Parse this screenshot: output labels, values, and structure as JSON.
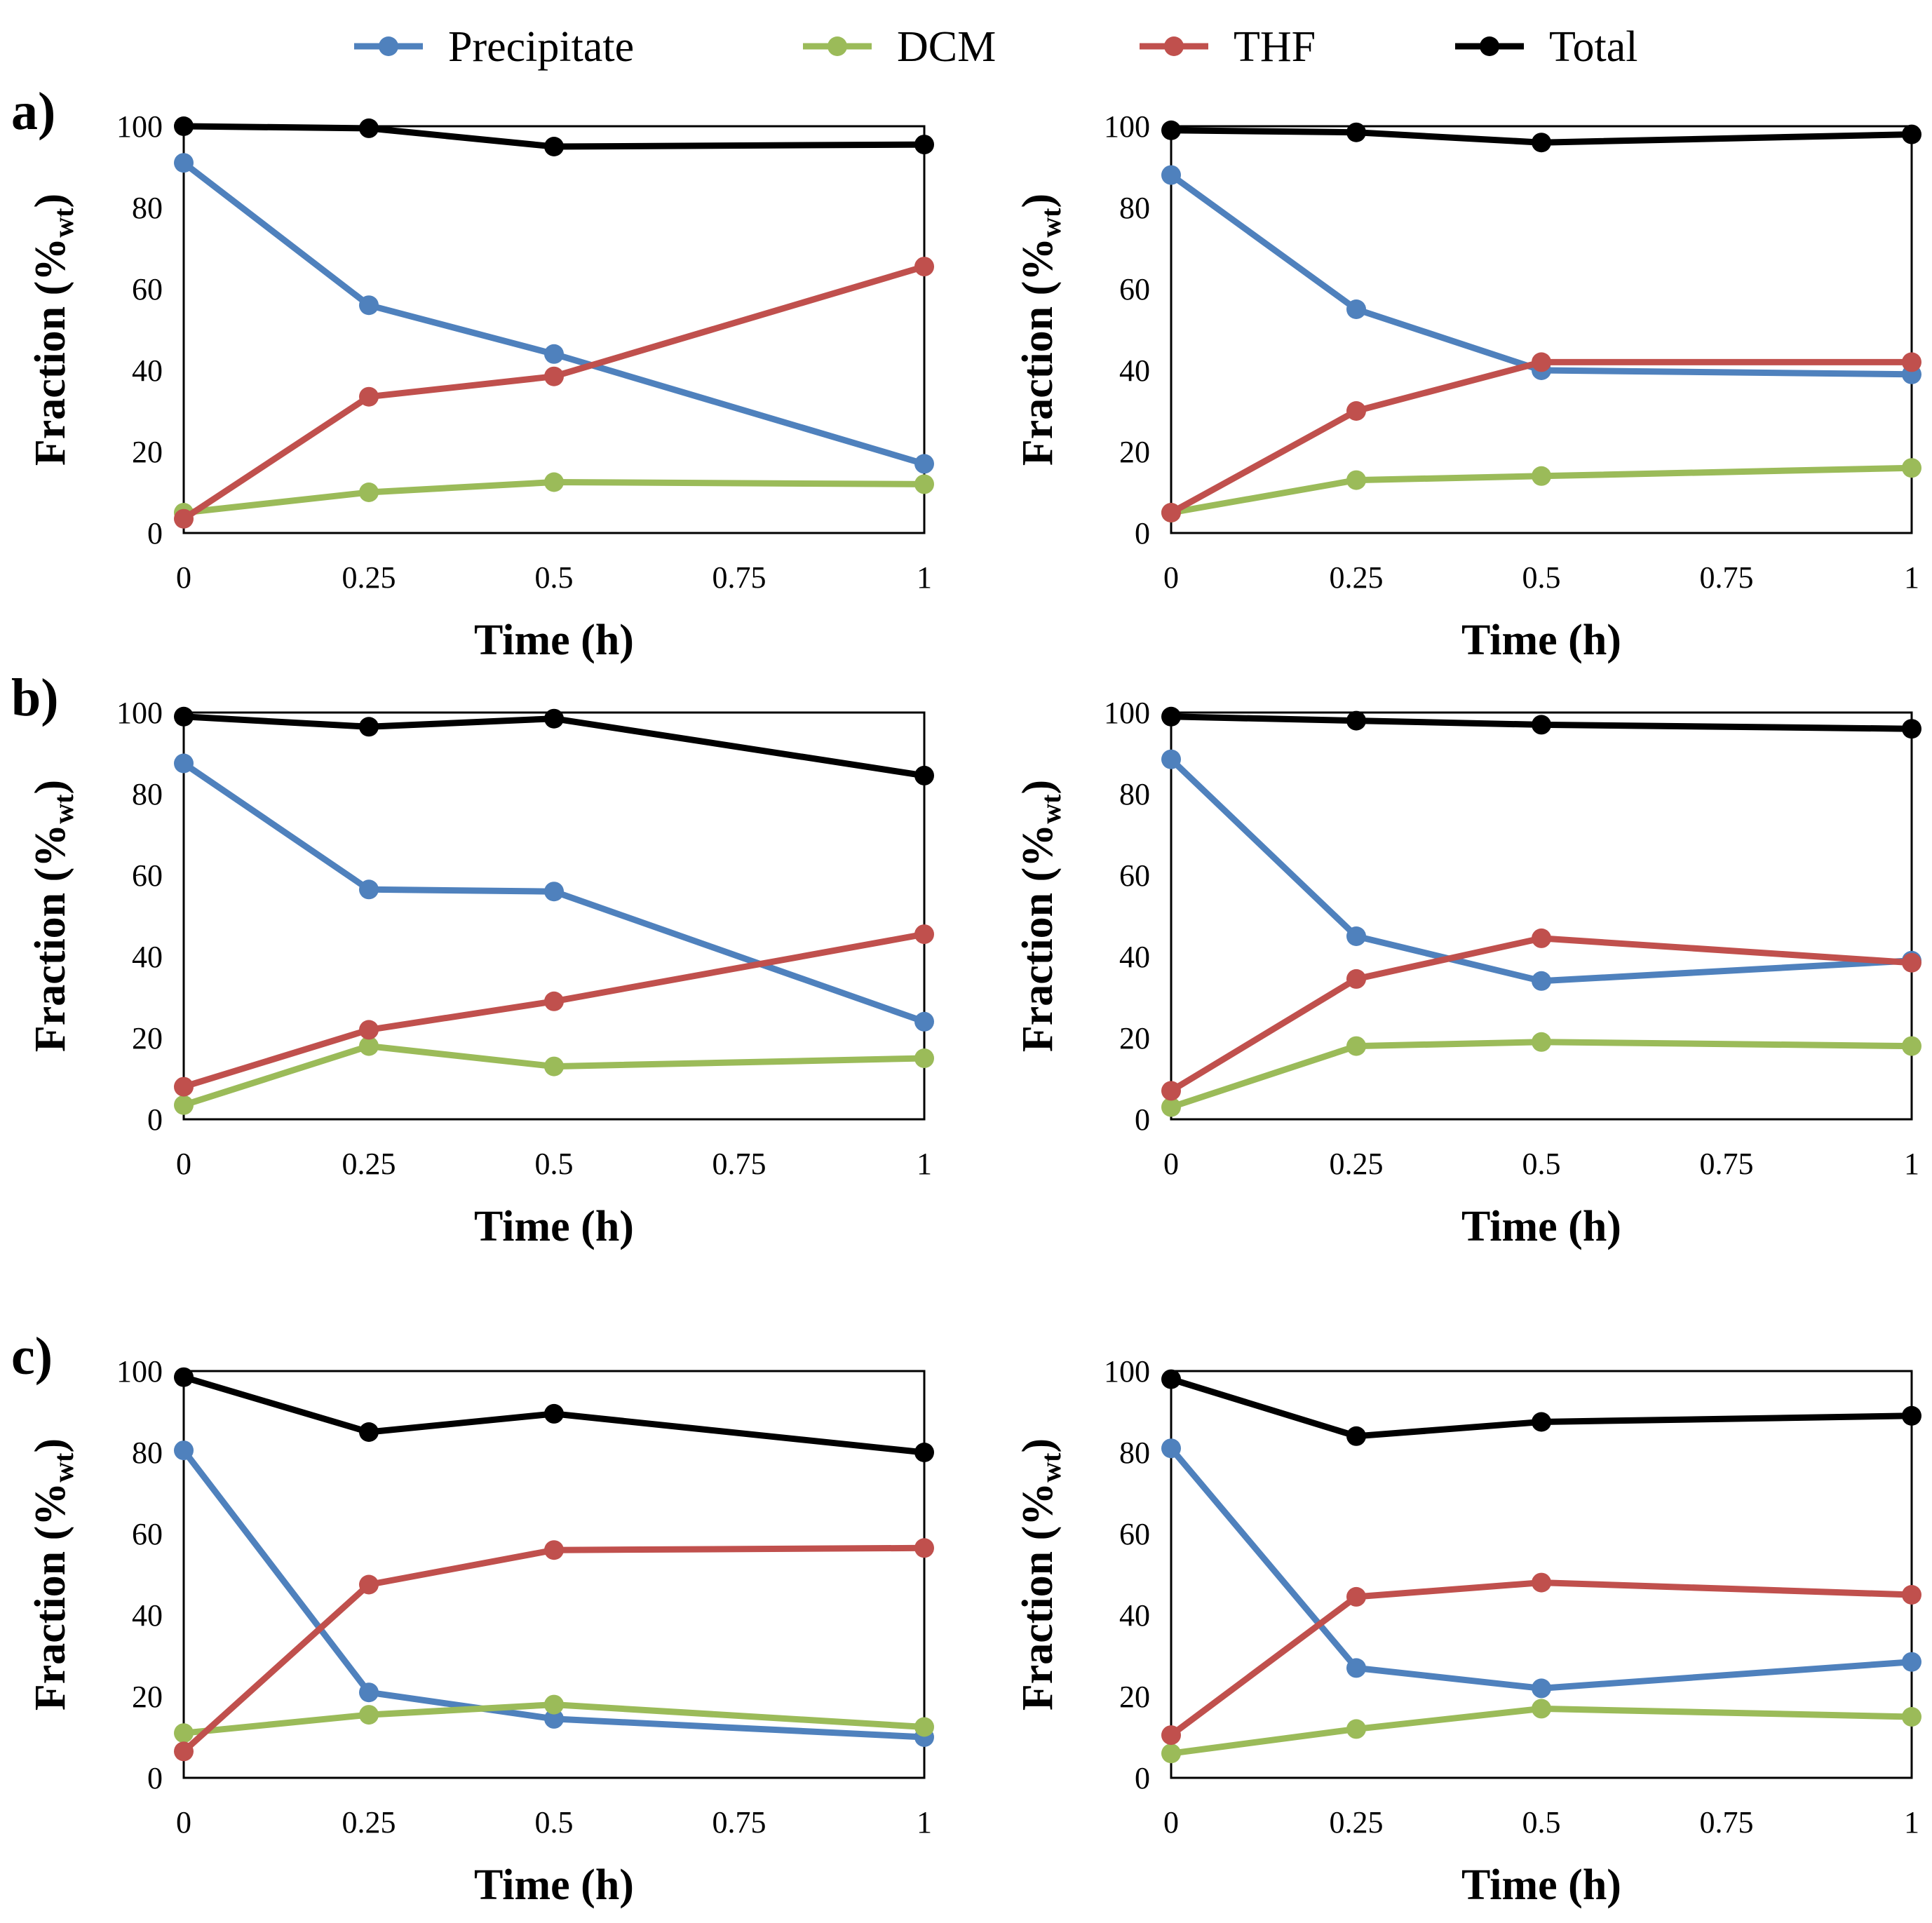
{
  "legend": [
    {
      "name": "Precipitate",
      "color": "#4f81bd"
    },
    {
      "name": "DCM",
      "color": "#9bbb59"
    },
    {
      "name": "THF",
      "color": "#c0504d"
    },
    {
      "name": "Total",
      "color": "#000000"
    }
  ],
  "panel_labels": [
    "a)",
    "b)",
    "c)"
  ],
  "chart_data": [
    {
      "type": "line",
      "panel": "a)",
      "xlabel": "Time (h)",
      "ylabel": "Fraction (%wt)",
      "xlim": [
        0,
        1
      ],
      "ylim": [
        0,
        100
      ],
      "xticks": [
        0,
        0.25,
        0.5,
        0.75,
        1
      ],
      "xtick_labels": [
        "0",
        "0.25",
        "0.5",
        "0.75",
        "1"
      ],
      "yticks": [
        0,
        20,
        40,
        60,
        80,
        100
      ],
      "ytick_labels": [
        "0",
        "20",
        "40",
        "60",
        "80",
        "100"
      ],
      "x": [
        0,
        0.25,
        0.5,
        1
      ],
      "series": [
        {
          "name": "Precipitate",
          "values": [
            91,
            56,
            44,
            17
          ]
        },
        {
          "name": "DCM",
          "values": [
            5,
            10,
            12.5,
            12
          ]
        },
        {
          "name": "THF",
          "values": [
            3.5,
            33.5,
            38.5,
            65.5
          ]
        },
        {
          "name": "Total",
          "values": [
            100,
            99.5,
            95,
            95.5
          ]
        }
      ]
    },
    {
      "type": "line",
      "panel": "",
      "xlabel": "Time (h)",
      "ylabel": "Fraction (%wt)",
      "xlim": [
        0,
        1
      ],
      "ylim": [
        0,
        100
      ],
      "xticks": [
        0,
        0.25,
        0.5,
        0.75,
        1
      ],
      "xtick_labels": [
        "0",
        "0.25",
        "0.5",
        "0.75",
        "1"
      ],
      "yticks": [
        0,
        20,
        40,
        60,
        80,
        100
      ],
      "ytick_labels": [
        "0",
        "20",
        "40",
        "60",
        "80",
        "100"
      ],
      "x": [
        0,
        0.25,
        0.5,
        1
      ],
      "series": [
        {
          "name": "Precipitate",
          "values": [
            88,
            55,
            40,
            39
          ]
        },
        {
          "name": "DCM",
          "values": [
            5,
            13,
            14,
            16
          ]
        },
        {
          "name": "THF",
          "values": [
            5,
            30,
            42,
            42
          ]
        },
        {
          "name": "Total",
          "values": [
            99,
            98.5,
            96,
            98
          ]
        }
      ]
    },
    {
      "type": "line",
      "panel": "b)",
      "xlabel": "Time (h)",
      "ylabel": "Fraction (%wt)",
      "xlim": [
        0,
        1
      ],
      "ylim": [
        0,
        100
      ],
      "xticks": [
        0,
        0.25,
        0.5,
        0.75,
        1
      ],
      "xtick_labels": [
        "0",
        "0.25",
        "0.5",
        "0.75",
        "1"
      ],
      "yticks": [
        0,
        20,
        40,
        60,
        80,
        100
      ],
      "ytick_labels": [
        "0",
        "20",
        "40",
        "60",
        "80",
        "100"
      ],
      "x": [
        0,
        0.25,
        0.5,
        1
      ],
      "series": [
        {
          "name": "Precipitate",
          "values": [
            87.5,
            56.5,
            56,
            24
          ]
        },
        {
          "name": "DCM",
          "values": [
            3.5,
            18,
            13,
            15
          ]
        },
        {
          "name": "THF",
          "values": [
            8,
            22,
            29,
            45.5
          ]
        },
        {
          "name": "Total",
          "values": [
            99,
            96.5,
            98.5,
            84.5
          ]
        }
      ]
    },
    {
      "type": "line",
      "panel": "",
      "xlabel": "Time (h)",
      "ylabel": "Fraction (%wt)",
      "xlim": [
        0,
        1
      ],
      "ylim": [
        0,
        100
      ],
      "xticks": [
        0,
        0.25,
        0.5,
        0.75,
        1
      ],
      "xtick_labels": [
        "0",
        "0.25",
        "0.5",
        "0.75",
        "1"
      ],
      "yticks": [
        0,
        20,
        40,
        60,
        80,
        100
      ],
      "ytick_labels": [
        "0",
        "20",
        "40",
        "60",
        "80",
        "100"
      ],
      "x": [
        0,
        0.25,
        0.5,
        1
      ],
      "series": [
        {
          "name": "Precipitate",
          "values": [
            88.5,
            45,
            34,
            39
          ]
        },
        {
          "name": "DCM",
          "values": [
            3,
            18,
            19,
            18
          ]
        },
        {
          "name": "THF",
          "values": [
            7,
            34.5,
            44.5,
            38.5
          ]
        },
        {
          "name": "Total",
          "values": [
            99,
            98,
            97,
            96
          ]
        }
      ]
    },
    {
      "type": "line",
      "panel": "c)",
      "xlabel": "Time (h)",
      "ylabel": "Fraction (%wt)",
      "xlim": [
        0,
        1
      ],
      "ylim": [
        0,
        100
      ],
      "xticks": [
        0,
        0.25,
        0.5,
        0.75,
        1
      ],
      "xtick_labels": [
        "0",
        "0.25",
        "0.5",
        "0.75",
        "1"
      ],
      "yticks": [
        0,
        20,
        40,
        60,
        80,
        100
      ],
      "ytick_labels": [
        "0",
        "20",
        "40",
        "60",
        "80",
        "100"
      ],
      "x": [
        0,
        0.25,
        0.5,
        1
      ],
      "series": [
        {
          "name": "Precipitate",
          "values": [
            80.5,
            21,
            14.5,
            10
          ]
        },
        {
          "name": "DCM",
          "values": [
            11,
            15.5,
            18,
            12.5
          ]
        },
        {
          "name": "THF",
          "values": [
            6.5,
            47.5,
            56,
            56.5
          ]
        },
        {
          "name": "Total",
          "values": [
            98.5,
            85,
            89.5,
            80
          ]
        }
      ]
    },
    {
      "type": "line",
      "panel": "",
      "xlabel": "Time (h)",
      "ylabel": "Fraction (%wt)",
      "xlim": [
        0,
        1
      ],
      "ylim": [
        0,
        100
      ],
      "xticks": [
        0,
        0.25,
        0.5,
        0.75,
        1
      ],
      "xtick_labels": [
        "0",
        "0.25",
        "0.5",
        "0.75",
        "1"
      ],
      "yticks": [
        0,
        20,
        40,
        60,
        80,
        100
      ],
      "ytick_labels": [
        "0",
        "20",
        "40",
        "60",
        "80",
        "100"
      ],
      "x": [
        0,
        0.25,
        0.5,
        1
      ],
      "series": [
        {
          "name": "Precipitate",
          "values": [
            81,
            27,
            22,
            28.5
          ]
        },
        {
          "name": "DCM",
          "values": [
            6,
            12,
            17,
            15
          ]
        },
        {
          "name": "THF",
          "values": [
            10.5,
            44.5,
            48,
            45
          ]
        },
        {
          "name": "Total",
          "values": [
            98,
            84,
            87.5,
            89
          ]
        }
      ]
    }
  ]
}
